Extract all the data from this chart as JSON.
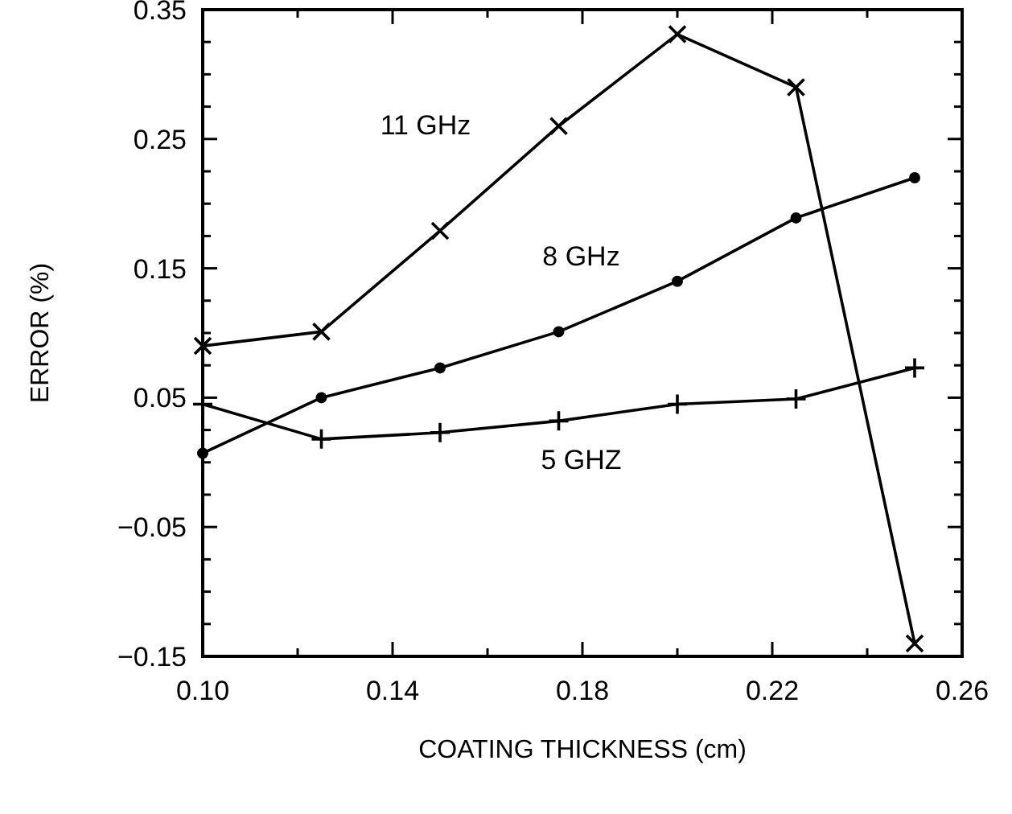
{
  "chart_data": {
    "type": "line",
    "xlabel": "COATING THICKNESS (cm)",
    "ylabel": "ERROR (%)",
    "x": [
      0.1,
      0.125,
      0.15,
      0.175,
      0.2,
      0.225,
      0.25
    ],
    "series": [
      {
        "name": "11 GHz",
        "color": "#000000",
        "marker": "x",
        "values": [
          0.09,
          0.101,
          0.179,
          0.26,
          0.331,
          0.29,
          -0.14
        ]
      },
      {
        "name": "8 GHz",
        "color": "#000000",
        "marker": "circle",
        "values": [
          0.007,
          0.05,
          0.073,
          0.101,
          0.14,
          0.189,
          0.22
        ]
      },
      {
        "name": "5 GHZ",
        "color": "#000000",
        "marker": "cross",
        "values": [
          0.045,
          0.018,
          0.023,
          0.032,
          0.045,
          0.049,
          0.073
        ]
      }
    ],
    "xlim": [
      0.1,
      0.26
    ],
    "ylim": [
      -0.15,
      0.35
    ],
    "xticks": [
      {
        "value": 0.1,
        "label": "0.10"
      },
      {
        "value": 0.12,
        "label": null
      },
      0.14,
      {
        "value": 0.16,
        "label": null
      },
      0.18,
      {
        "value": 0.2,
        "label": null
      },
      0.22,
      {
        "value": 0.24,
        "label": null
      },
      0.26
    ],
    "yticks": [
      -0.15,
      {
        "value": -0.125,
        "label": null
      },
      {
        "value": -0.1,
        "label": null
      },
      {
        "value": -0.075,
        "label": null
      },
      -0.05,
      {
        "value": -0.025,
        "label": null
      },
      {
        "value": 0,
        "label": null
      },
      {
        "value": 0.025,
        "label": null
      },
      0.05,
      {
        "value": 0.075,
        "label": null
      },
      {
        "value": 0.1,
        "label": null
      },
      {
        "value": 0.125,
        "label": null
      },
      0.15,
      {
        "value": 0.175,
        "label": null
      },
      {
        "value": 0.2,
        "label": null
      },
      {
        "value": 0.225,
        "label": null
      },
      0.25,
      {
        "value": 0.275,
        "label": null
      },
      {
        "value": 0.3,
        "label": null
      },
      {
        "value": 0.325,
        "label": null
      },
      0.35
    ],
    "grid": false,
    "line_style": "solid"
  }
}
